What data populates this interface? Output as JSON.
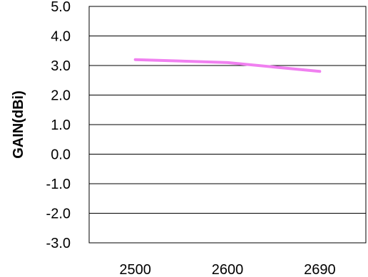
{
  "chart_data": {
    "type": "line",
    "title": "",
    "xlabel": "",
    "ylabel": "GAIN(dBi)",
    "categories": [
      "2500",
      "2600",
      "2690"
    ],
    "series": [
      {
        "values": [
          3.2,
          3.1,
          2.8
        ],
        "color": "#f080f0"
      }
    ],
    "ylim": [
      -3.0,
      5.0
    ],
    "yticks": [
      "5.0",
      "4.0",
      "3.0",
      "2.0",
      "1.0",
      "0.0",
      "-1.0",
      "-2.0",
      "-3.0"
    ],
    "grid": true,
    "legend": "none"
  }
}
